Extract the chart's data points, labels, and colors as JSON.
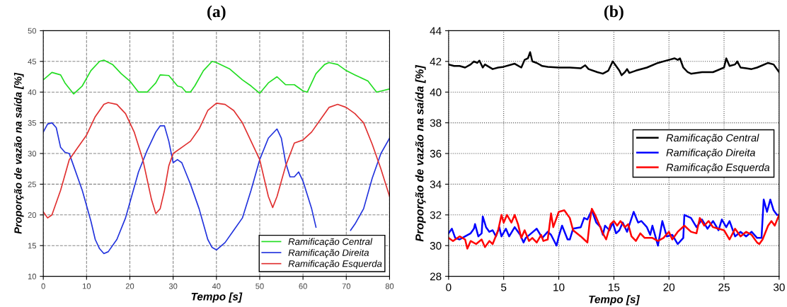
{
  "chart_data": [
    {
      "type": "line",
      "title": "(a)",
      "xlabel": "Tempo [s]",
      "ylabel": "Proporção de vazão na saída [%]",
      "xlim": [
        0,
        80
      ],
      "ylim": [
        10,
        50
      ],
      "xticks": [
        0,
        10,
        20,
        30,
        40,
        50,
        60,
        70,
        80
      ],
      "yticks": [
        10,
        15,
        20,
        25,
        30,
        35,
        40,
        45,
        50
      ],
      "grid": true,
      "legend": "bottom right",
      "line_style": "solid",
      "series": [
        {
          "name": "Ramificação Central",
          "color": "#22dd22",
          "x": [
            0,
            2,
            4,
            5,
            7,
            9,
            11,
            13,
            14,
            16,
            18,
            20,
            22,
            24,
            26,
            27,
            29,
            31,
            32,
            33,
            34,
            35,
            37,
            39,
            40,
            43,
            46,
            48,
            50,
            52,
            54,
            56,
            58,
            60,
            61,
            63,
            65,
            66,
            68,
            70,
            72,
            75,
            77,
            80
          ],
          "values": [
            42,
            43.2,
            42.8,
            41.5,
            39.7,
            41,
            43.5,
            45,
            45.2,
            44.5,
            43,
            41.8,
            40,
            40,
            41.5,
            42.8,
            42.7,
            41,
            40.8,
            40,
            40,
            41,
            43.5,
            45,
            44.8,
            43.8,
            42,
            41,
            39.8,
            41.5,
            42.5,
            41.2,
            41.2,
            40.2,
            40,
            43,
            44.5,
            44.8,
            44.5,
            43.5,
            42.8,
            41.8,
            40,
            40.5
          ]
        },
        {
          "name": "Ramificação Direita",
          "color": "#2233dd",
          "x": [
            0,
            1,
            2,
            3,
            4,
            5,
            6,
            7,
            9,
            11,
            12,
            13,
            14,
            15,
            17,
            19,
            20,
            22,
            24,
            26,
            27,
            28,
            29,
            30,
            31,
            32,
            34,
            36,
            37,
            38,
            39,
            40,
            42,
            44,
            46,
            48,
            50,
            52,
            54,
            55,
            56,
            57,
            58,
            59,
            60,
            62,
            63,
            67,
            71,
            72,
            74,
            76,
            78,
            80
          ],
          "values": [
            33.5,
            34.8,
            35,
            34.2,
            31,
            30.2,
            30,
            28,
            24,
            19,
            16,
            14.5,
            13.7,
            14,
            16,
            19.5,
            22,
            27,
            30.5,
            33.5,
            34.5,
            34.5,
            32,
            28.5,
            29,
            28.5,
            25,
            21,
            18.5,
            16,
            14.7,
            14.3,
            15.5,
            17.5,
            19.5,
            24,
            29,
            32.5,
            34,
            32.5,
            28.5,
            26.2,
            26.2,
            27,
            25.5,
            21,
            18,
            null,
            17.5,
            18.5,
            21,
            26,
            30,
            32.5
          ]
        },
        {
          "name": "Ramificação Esquerda",
          "color": "#e03030",
          "x": [
            0,
            1,
            2,
            4,
            6,
            7,
            8,
            10,
            12,
            14,
            15,
            17,
            19,
            21,
            23,
            25,
            26,
            27,
            28,
            29,
            30,
            32,
            34,
            36,
            38,
            40,
            42,
            44,
            46,
            48,
            50,
            52,
            53,
            54,
            56,
            58,
            60,
            62,
            64,
            66,
            68,
            70,
            72,
            74,
            76,
            78,
            80
          ],
          "values": [
            20.5,
            19.5,
            20,
            24,
            29,
            30,
            31,
            33,
            36,
            38,
            38.3,
            38,
            36.5,
            33.5,
            29,
            22.5,
            20.2,
            21,
            24,
            28,
            30,
            31,
            32,
            34,
            37,
            38.2,
            38,
            37,
            35,
            32,
            29,
            23,
            21.2,
            23,
            28,
            31.7,
            32.2,
            33.5,
            35.5,
            37.5,
            38,
            37.5,
            36.5,
            35,
            31.5,
            27.5,
            23
          ]
        }
      ]
    },
    {
      "type": "line",
      "title": "(b)",
      "xlabel": "Tempo [s]",
      "ylabel": "Proporção de vazão na saída [%]",
      "xlim": [
        0,
        30
      ],
      "ylim": [
        28,
        44
      ],
      "xticks": [
        0,
        5,
        10,
        15,
        20,
        25,
        30
      ],
      "yticks": [
        28,
        30,
        32,
        34,
        36,
        38,
        40,
        42,
        44
      ],
      "grid": true,
      "legend": "right",
      "line_style": "solid",
      "series": [
        {
          "name": "Ramificação Central",
          "color": "#000000",
          "x": [
            0,
            0.5,
            1,
            1.5,
            2,
            2.3,
            2.6,
            2.8,
            3.1,
            3.3,
            4,
            4.5,
            5,
            6,
            6.6,
            6.9,
            7.2,
            7.4,
            7.6,
            8,
            8.5,
            9,
            10,
            11,
            12,
            12.4,
            12.7,
            13.5,
            14,
            14.5,
            14.9,
            15.2,
            15.5,
            15.7,
            16,
            16.2,
            16.4,
            17,
            18,
            19,
            20,
            20.5,
            20.8,
            21,
            21.3,
            21.7,
            22,
            23,
            24,
            25,
            25.2,
            25.5,
            26,
            26.2,
            26.5,
            27,
            27.5,
            28,
            29,
            29.5,
            30
          ],
          "values": [
            41.8,
            41.7,
            41.7,
            41.6,
            41.8,
            42.0,
            41.9,
            42.05,
            41.6,
            41.8,
            41.5,
            41.6,
            41.65,
            41.85,
            41.6,
            42.1,
            42.2,
            42.6,
            42.0,
            41.9,
            41.7,
            41.65,
            41.6,
            41.6,
            41.55,
            41.75,
            41.5,
            41.3,
            41.2,
            41.4,
            42.0,
            41.7,
            41.4,
            41.1,
            41.3,
            41.5,
            41.25,
            41.4,
            41.6,
            41.9,
            42.1,
            42.2,
            42.1,
            42.2,
            41.6,
            41.3,
            41.2,
            41.3,
            41.3,
            41.6,
            42.2,
            41.7,
            41.8,
            42.0,
            41.6,
            41.55,
            41.5,
            41.6,
            41.9,
            41.8,
            41.3
          ]
        },
        {
          "name": "Ramificação Direita",
          "color": "#0000ff",
          "x": [
            0,
            0.3,
            0.6,
            1,
            1.5,
            2,
            2.3,
            2.4,
            2.7,
            3,
            3.1,
            3.4,
            3.7,
            4,
            4.3,
            4.6,
            4.8,
            5.2,
            5.5,
            6,
            6.5,
            6.8,
            7,
            7.5,
            8,
            8.5,
            9,
            9.3,
            9.8,
            10,
            10.3,
            10.8,
            11,
            11.3,
            12,
            12.3,
            12.6,
            13,
            13.4,
            13.8,
            14,
            14.2,
            14.6,
            14.9,
            15.2,
            15.5,
            15.8,
            16.2,
            16.8,
            17.2,
            17.5,
            18,
            18.3,
            18.5,
            19,
            19.4,
            19.8,
            20.3,
            20.8,
            21.3,
            21.4,
            22,
            22.5,
            23,
            23.5,
            24,
            24.5,
            24.8,
            25.2,
            25.5,
            26,
            26.5,
            27,
            27.5,
            28,
            28.4,
            28.6,
            28.9,
            29.2,
            29.5,
            29.8,
            30
          ],
          "values": [
            30.8,
            31.1,
            30.5,
            30.4,
            30.6,
            30.8,
            31.1,
            31.4,
            30.6,
            30.8,
            31.9,
            31.2,
            30.9,
            31.0,
            30.6,
            31.2,
            30.6,
            31.1,
            30.6,
            31.2,
            30.7,
            30.2,
            30.5,
            30.8,
            31.1,
            30.5,
            30.9,
            30.7,
            30.0,
            30.6,
            31.3,
            30.4,
            30.4,
            31.1,
            31.2,
            31.8,
            31.7,
            32.3,
            31.5,
            31.2,
            30.7,
            31.3,
            31.0,
            31.5,
            30.8,
            31.0,
            31.5,
            30.9,
            32.2,
            31.5,
            31.6,
            31.2,
            30.7,
            31.3,
            30.0,
            31.6,
            30.6,
            30.7,
            30.1,
            30.5,
            32.0,
            31.8,
            31.2,
            31.7,
            31.1,
            31.6,
            31.0,
            31.7,
            31.2,
            31.6,
            30.6,
            30.9,
            30.6,
            30.9,
            30.5,
            30.5,
            33.0,
            32.2,
            33.0,
            32.3,
            32.0,
            32.0
          ]
        },
        {
          "name": "Ramificação Esquerda",
          "color": "#ff0000",
          "x": [
            0,
            0.4,
            1,
            1.5,
            1.7,
            2,
            2.5,
            3,
            3.3,
            3.7,
            4,
            4.5,
            4.8,
            5,
            5.3,
            5.7,
            6,
            6.3,
            6.6,
            6.9,
            7.3,
            7.6,
            8,
            8.4,
            8.6,
            9,
            9.3,
            9.5,
            10,
            10.5,
            11,
            11.3,
            12,
            12.3,
            12.6,
            12.8,
            13,
            13.3,
            13.6,
            14,
            14.3,
            14.7,
            15,
            15.3,
            15.6,
            16,
            16.3,
            16.6,
            17,
            17.4,
            17.8,
            18.5,
            19,
            19.5,
            20,
            20.3,
            20.8,
            21.4,
            22,
            22.5,
            22.8,
            23.2,
            23.6,
            24,
            25,
            25.5,
            26,
            26.5,
            27,
            27.5,
            28,
            28.2,
            28.5,
            29,
            29.3,
            29.6,
            30
          ],
          "values": [
            30.5,
            30.3,
            30.6,
            30.4,
            29.8,
            30.3,
            30.1,
            30.4,
            29.9,
            30.3,
            30.1,
            31.0,
            32.0,
            31.5,
            32.0,
            31.5,
            32.0,
            31.4,
            30.5,
            31.0,
            30.3,
            30.5,
            30.2,
            30.7,
            30.3,
            30.4,
            32.1,
            31.2,
            32.2,
            32.3,
            31.8,
            31.0,
            30.6,
            30.4,
            30.2,
            31.5,
            32.4,
            32.0,
            31.5,
            30.8,
            30.4,
            31.4,
            31.6,
            31.3,
            31.6,
            31.2,
            31.4,
            30.6,
            30.3,
            30.8,
            30.5,
            30.5,
            30.3,
            30.5,
            30.9,
            30.4,
            30.9,
            31.3,
            30.9,
            30.8,
            31.8,
            31.3,
            31.6,
            31.2,
            31.0,
            30.4,
            31.1,
            30.6,
            30.9,
            30.7,
            30.2,
            30.1,
            30.4,
            31.3,
            31.6,
            31.3,
            32.0
          ]
        }
      ]
    }
  ]
}
